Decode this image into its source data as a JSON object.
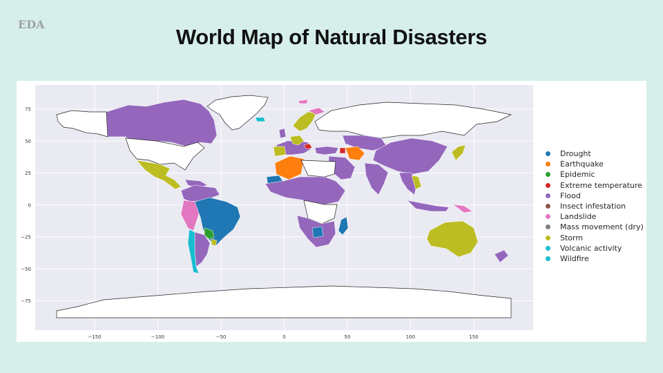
{
  "slide": {
    "section_tag": "EDA",
    "title": "World Map of Natural Disasters"
  },
  "chart_data": {
    "type": "choropleth",
    "title": "",
    "xlabel": "",
    "ylabel": "",
    "xlim": [
      -197,
      197
    ],
    "ylim": [
      -98,
      94
    ],
    "x_ticks": [
      -150,
      -100,
      -50,
      0,
      50,
      100,
      150
    ],
    "y_ticks": [
      75,
      50,
      25,
      0,
      -25,
      -50,
      -75
    ],
    "x_tick_labels": [
      "−150",
      "−100",
      "−50",
      "0",
      "50",
      "100",
      "150"
    ],
    "y_tick_labels": [
      "75",
      "50",
      "25",
      "0",
      "−25",
      "−50",
      "−75"
    ],
    "grid": true,
    "legend_position": "right",
    "no_data_color": "#ffffff",
    "categories": [
      {
        "name": "Drought",
        "color": "#1f77b4"
      },
      {
        "name": "Earthquake",
        "color": "#ff7f0e"
      },
      {
        "name": "Epidemic",
        "color": "#2ca02c"
      },
      {
        "name": "Extreme temperature",
        "color": "#d62728"
      },
      {
        "name": "Flood",
        "color": "#9467bd"
      },
      {
        "name": "Insect infestation",
        "color": "#8c564b"
      },
      {
        "name": "Landslide",
        "color": "#e377c2"
      },
      {
        "name": "Mass movement (dry)",
        "color": "#7f7f7f"
      },
      {
        "name": "Storm",
        "color": "#bcbd22"
      },
      {
        "name": "Volcanic activity",
        "color": "#17becf"
      },
      {
        "name": "Wildfire",
        "color": "#17becf"
      }
    ]
  }
}
